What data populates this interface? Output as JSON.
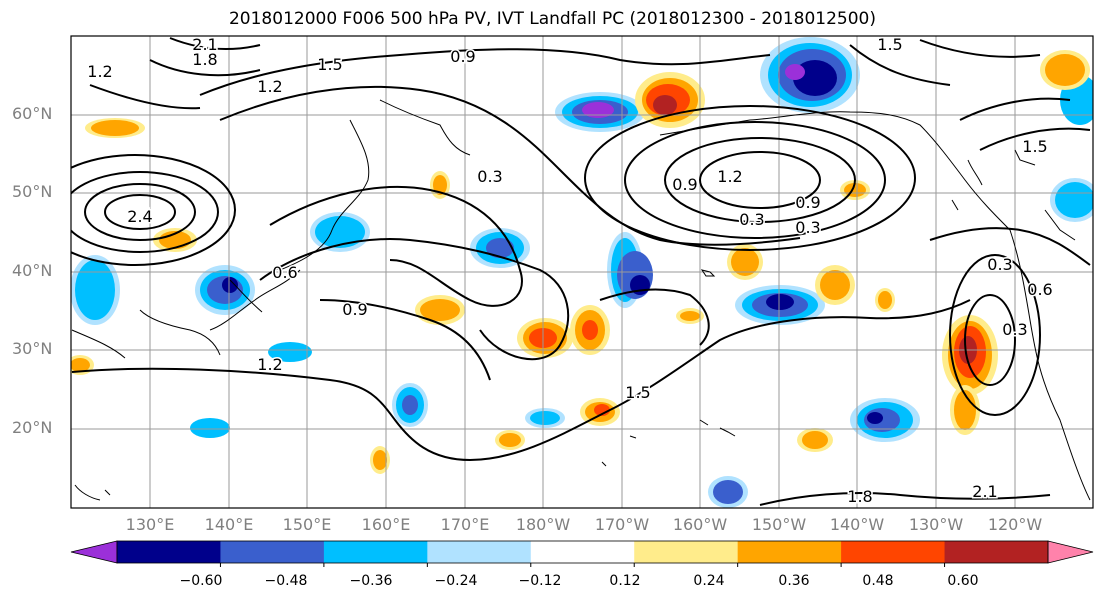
{
  "title": "2018012000 F006 500 hPa PV, IVT Landfall PC (2018012300 - 2018012500)",
  "lat_ticks": [
    "60°N",
    "50°N",
    "40°N",
    "30°N",
    "20°N"
  ],
  "lon_ticks": [
    "130°E",
    "140°E",
    "150°E",
    "160°E",
    "170°E",
    "180°W",
    "170°W",
    "160°W",
    "150°W",
    "140°W",
    "130°W",
    "120°W"
  ],
  "contour_labels": [
    "0.9",
    "1.2",
    "1.5",
    "1.8",
    "2.1",
    "2.4",
    "0.3",
    "0.6",
    "0.9",
    "1.2",
    "1.5",
    "1.8",
    "2.1",
    "0.3",
    "0.6",
    "0.3",
    "0.3",
    "0.3",
    "0.9",
    "0.9",
    "1.2",
    "1.5",
    "1.5",
    "1.2"
  ],
  "colorbar": {
    "ticks": [
      "−0.60",
      "−0.48",
      "−0.36",
      "−0.24",
      "−0.12",
      "0.12",
      "0.24",
      "0.36",
      "0.48",
      "0.60"
    ],
    "colors": [
      "#9b30d9",
      "#00008b",
      "#3a5fcd",
      "#00bfff",
      "#b0e2ff",
      "#ffffff",
      "#ffec8b",
      "#ffa500",
      "#ff4500",
      "#b22222",
      "#ff82ab"
    ]
  },
  "colors": {
    "blue_strong": "#00008b",
    "blue_mid": "#3a5fcd",
    "blue_light": "#00bfff",
    "blue_pale": "#b0e2ff",
    "purple": "#9b30d9",
    "yellow": "#ffec8b",
    "orange": "#ffa500",
    "red_orange": "#ff4500",
    "dark_red": "#b22222"
  }
}
